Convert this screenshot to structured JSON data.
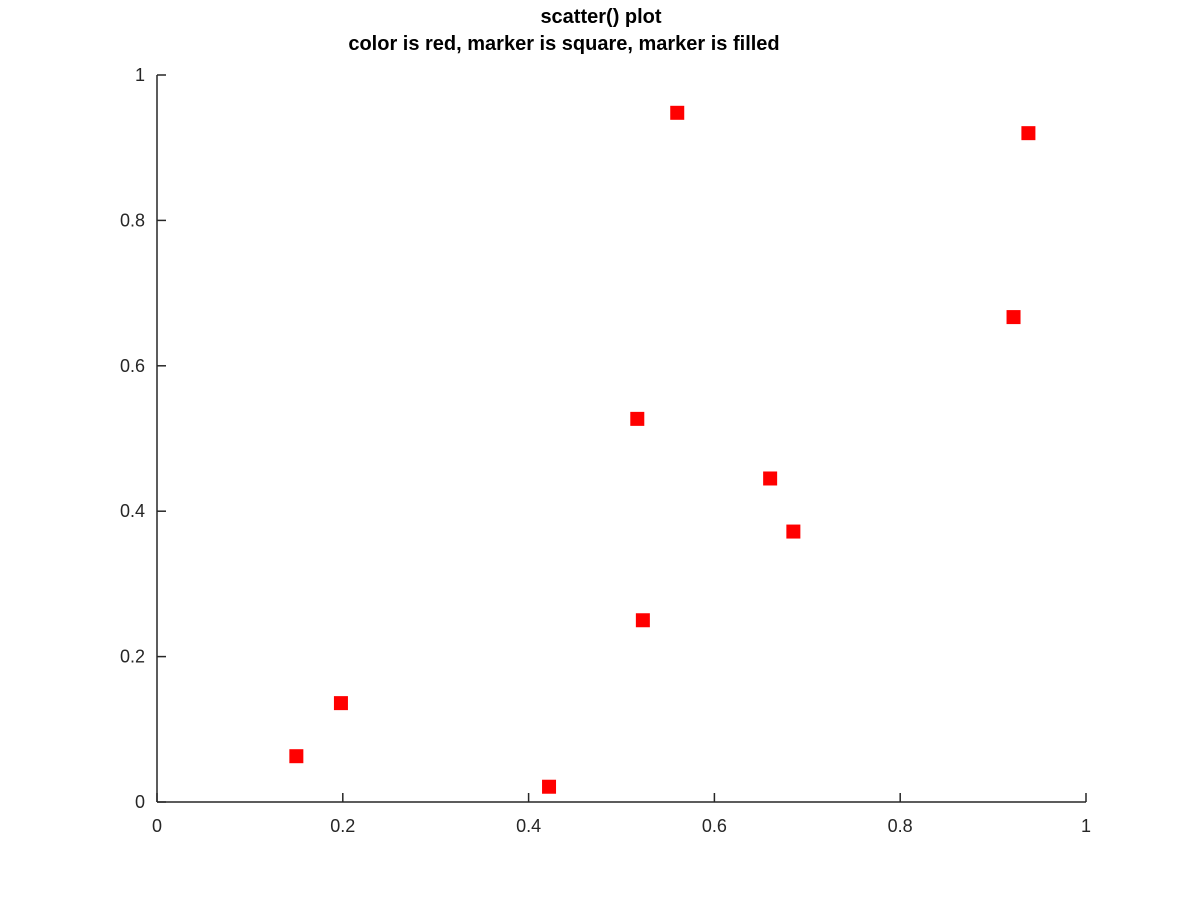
{
  "chart_data": {
    "type": "scatter",
    "title": "scatter() plot",
    "subtitle": "color is red, marker is square, marker is filled",
    "xlabel": "",
    "ylabel": "",
    "xlim": [
      0,
      1
    ],
    "ylim": [
      0,
      1
    ],
    "x_ticks": [
      0,
      0.2,
      0.4,
      0.6,
      0.8,
      1
    ],
    "x_tick_labels": [
      "0",
      "0.2",
      "0.4",
      "0.6",
      "0.8",
      "1"
    ],
    "y_ticks": [
      0,
      0.2,
      0.4,
      0.6,
      0.8,
      1
    ],
    "y_tick_labels": [
      "0",
      "0.2",
      "0.4",
      "0.6",
      "0.8",
      "1"
    ],
    "grid": false,
    "marker": "square",
    "marker_filled": true,
    "marker_color": "#ff0000",
    "series": [
      {
        "points": [
          {
            "x": 0.15,
            "y": 0.063
          },
          {
            "x": 0.198,
            "y": 0.136
          },
          {
            "x": 0.422,
            "y": 0.021
          },
          {
            "x": 0.517,
            "y": 0.527
          },
          {
            "x": 0.523,
            "y": 0.25
          },
          {
            "x": 0.56,
            "y": 0.948
          },
          {
            "x": 0.66,
            "y": 0.445
          },
          {
            "x": 0.685,
            "y": 0.372
          },
          {
            "x": 0.922,
            "y": 0.667
          },
          {
            "x": 0.938,
            "y": 0.92
          }
        ]
      }
    ]
  }
}
